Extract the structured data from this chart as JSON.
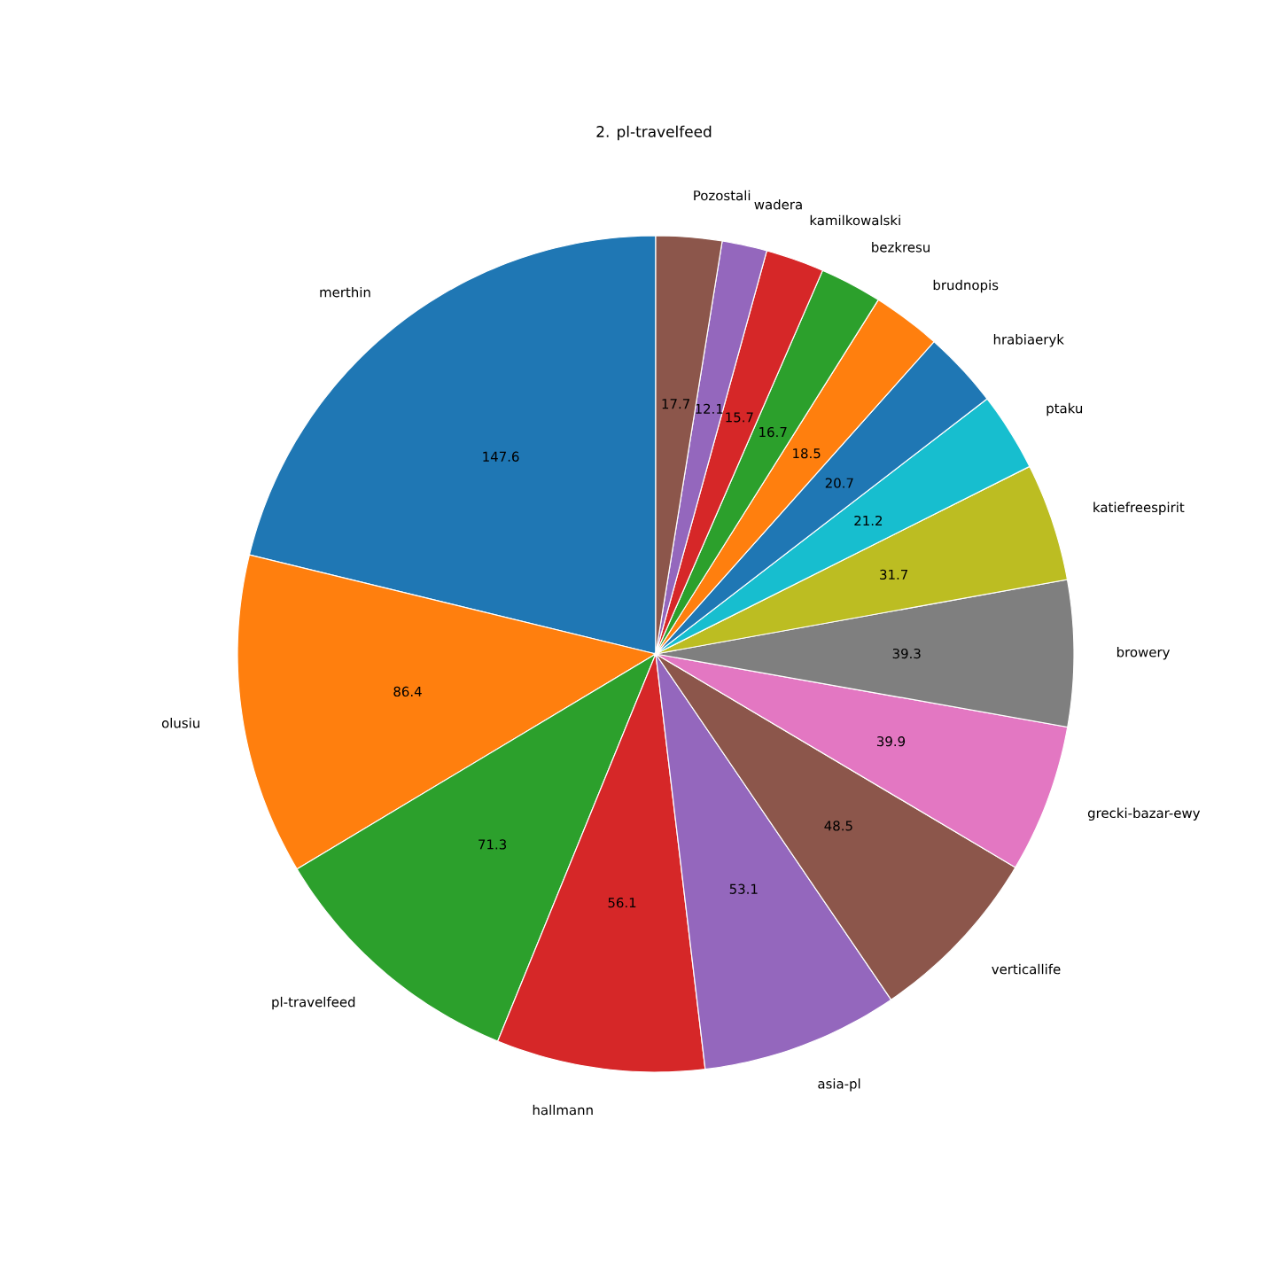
{
  "chart_data": {
    "type": "pie",
    "title": "2. pl-travelfeed",
    "categories": [
      "merthin",
      "olusiu",
      "pl-travelfeed",
      "hallmann",
      "asia-pl",
      "verticallife",
      "grecki-bazar-ewy",
      "browery",
      "katiefreespirit",
      "ptaku",
      "hrabiaeryk",
      "brudnopis",
      "bezkresu",
      "kamilkowalski",
      "wadera",
      "Pozostali"
    ],
    "values": [
      147.6,
      86.4,
      71.3,
      56.1,
      53.1,
      48.5,
      39.9,
      39.3,
      31.7,
      21.2,
      20.7,
      18.5,
      16.7,
      15.7,
      12.1,
      17.7
    ],
    "colors": [
      "#1f77b4",
      "#ff7f0e",
      "#2ca02c",
      "#d62728",
      "#9467bd",
      "#8c564b",
      "#e377c2",
      "#7f7f7f",
      "#bcbd22",
      "#17becf",
      "#1f77b4",
      "#ff7f0e",
      "#2ca02c",
      "#d62728",
      "#9467bd",
      "#8c564b"
    ],
    "data_labels": true
  }
}
